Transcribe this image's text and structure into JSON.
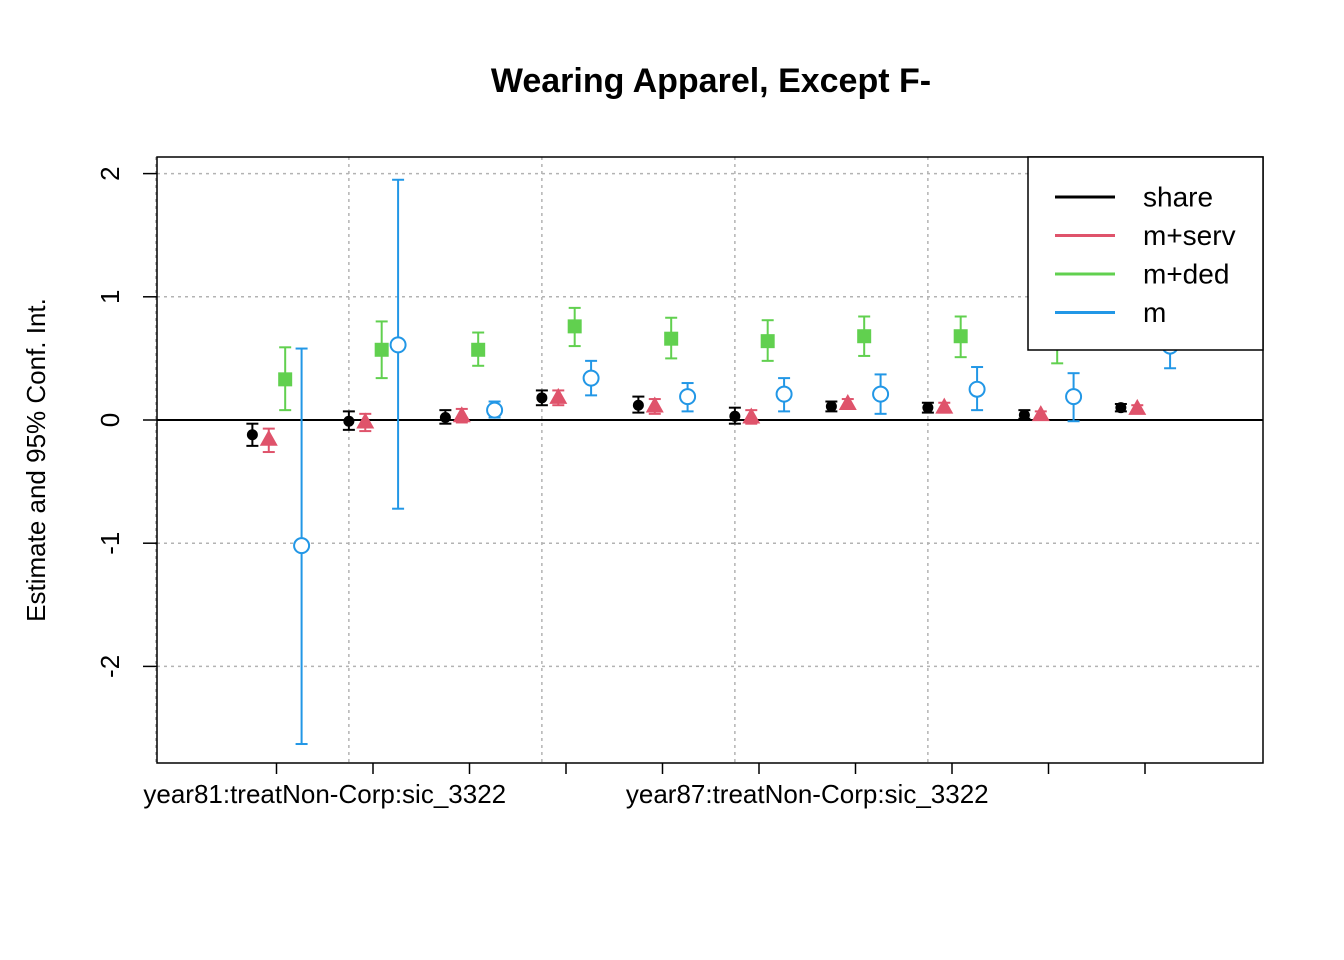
{
  "chart_data": {
    "type": "scatter",
    "subtype": "coefficient-plot-with-error-bars",
    "title": "Wearing Apparel, Except F-",
    "ylabel": "Estimate and 95% Conf. Int.",
    "xlabel": "",
    "ylim": [
      -2.75,
      2.12
    ],
    "yticks": [
      2,
      1,
      0,
      -1,
      -2
    ],
    "ytick_labels": [
      "2",
      "1",
      "0",
      "-1",
      "-2"
    ],
    "reference_line_y": 0,
    "grid": true,
    "legend_position": "top-right",
    "x_positions": [
      1,
      2,
      3,
      4,
      5,
      6,
      7,
      8,
      9,
      10
    ],
    "xtick_labels": [
      {
        "at": 1.5,
        "label": "year81:treatNon-Corp:sic_3322"
      },
      {
        "at": 6.5,
        "label": "year87:treatNon-Corp:sic_3322"
      }
    ],
    "series": [
      {
        "name": "share",
        "color": "#000000",
        "marker": "filled-circle",
        "offset": -0.25,
        "estimates": [
          -0.12,
          -0.01,
          0.02,
          0.18,
          0.12,
          0.03,
          0.11,
          0.1,
          0.04,
          0.1
        ],
        "lower": [
          -0.21,
          -0.08,
          -0.03,
          0.12,
          0.06,
          -0.03,
          0.07,
          0.06,
          0.01,
          0.07
        ],
        "upper": [
          -0.03,
          0.07,
          0.08,
          0.24,
          0.19,
          0.1,
          0.15,
          0.14,
          0.08,
          0.13
        ]
      },
      {
        "name": "m+serv",
        "color": "#DF536B",
        "marker": "filled-triangle",
        "offset": -0.08,
        "estimates": [
          -0.16,
          -0.02,
          0.03,
          0.18,
          0.11,
          0.02,
          0.13,
          0.1,
          0.04,
          0.09
        ],
        "lower": [
          -0.26,
          -0.09,
          -0.02,
          0.12,
          0.05,
          -0.03,
          0.09,
          0.06,
          0.01,
          0.06
        ],
        "upper": [
          -0.07,
          0.05,
          0.09,
          0.24,
          0.17,
          0.08,
          0.17,
          0.14,
          0.07,
          0.12
        ]
      },
      {
        "name": "m+ded",
        "color": "#61D04F",
        "marker": "filled-square",
        "offset": 0.09,
        "estimates": [
          0.33,
          0.57,
          0.57,
          0.76,
          0.66,
          0.64,
          0.68,
          0.68,
          0.63,
          null
        ],
        "lower": [
          0.08,
          0.34,
          0.44,
          0.6,
          0.5,
          0.48,
          0.52,
          0.51,
          0.46,
          null
        ],
        "upper": [
          0.59,
          0.8,
          0.71,
          0.91,
          0.83,
          0.81,
          0.84,
          0.84,
          0.8,
          null
        ]
      },
      {
        "name": "m",
        "color": "#2297E6",
        "marker": "open-circle",
        "offset": 0.26,
        "estimates": [
          -1.02,
          0.61,
          0.08,
          0.34,
          0.19,
          0.21,
          0.21,
          0.25,
          0.19,
          0.6
        ],
        "lower": [
          -2.63,
          -0.72,
          0.02,
          0.2,
          0.07,
          0.07,
          0.05,
          0.08,
          -0.01,
          0.42
        ],
        "upper": [
          0.58,
          1.95,
          0.15,
          0.48,
          0.3,
          0.34,
          0.37,
          0.43,
          0.38,
          0.78
        ]
      }
    ]
  }
}
